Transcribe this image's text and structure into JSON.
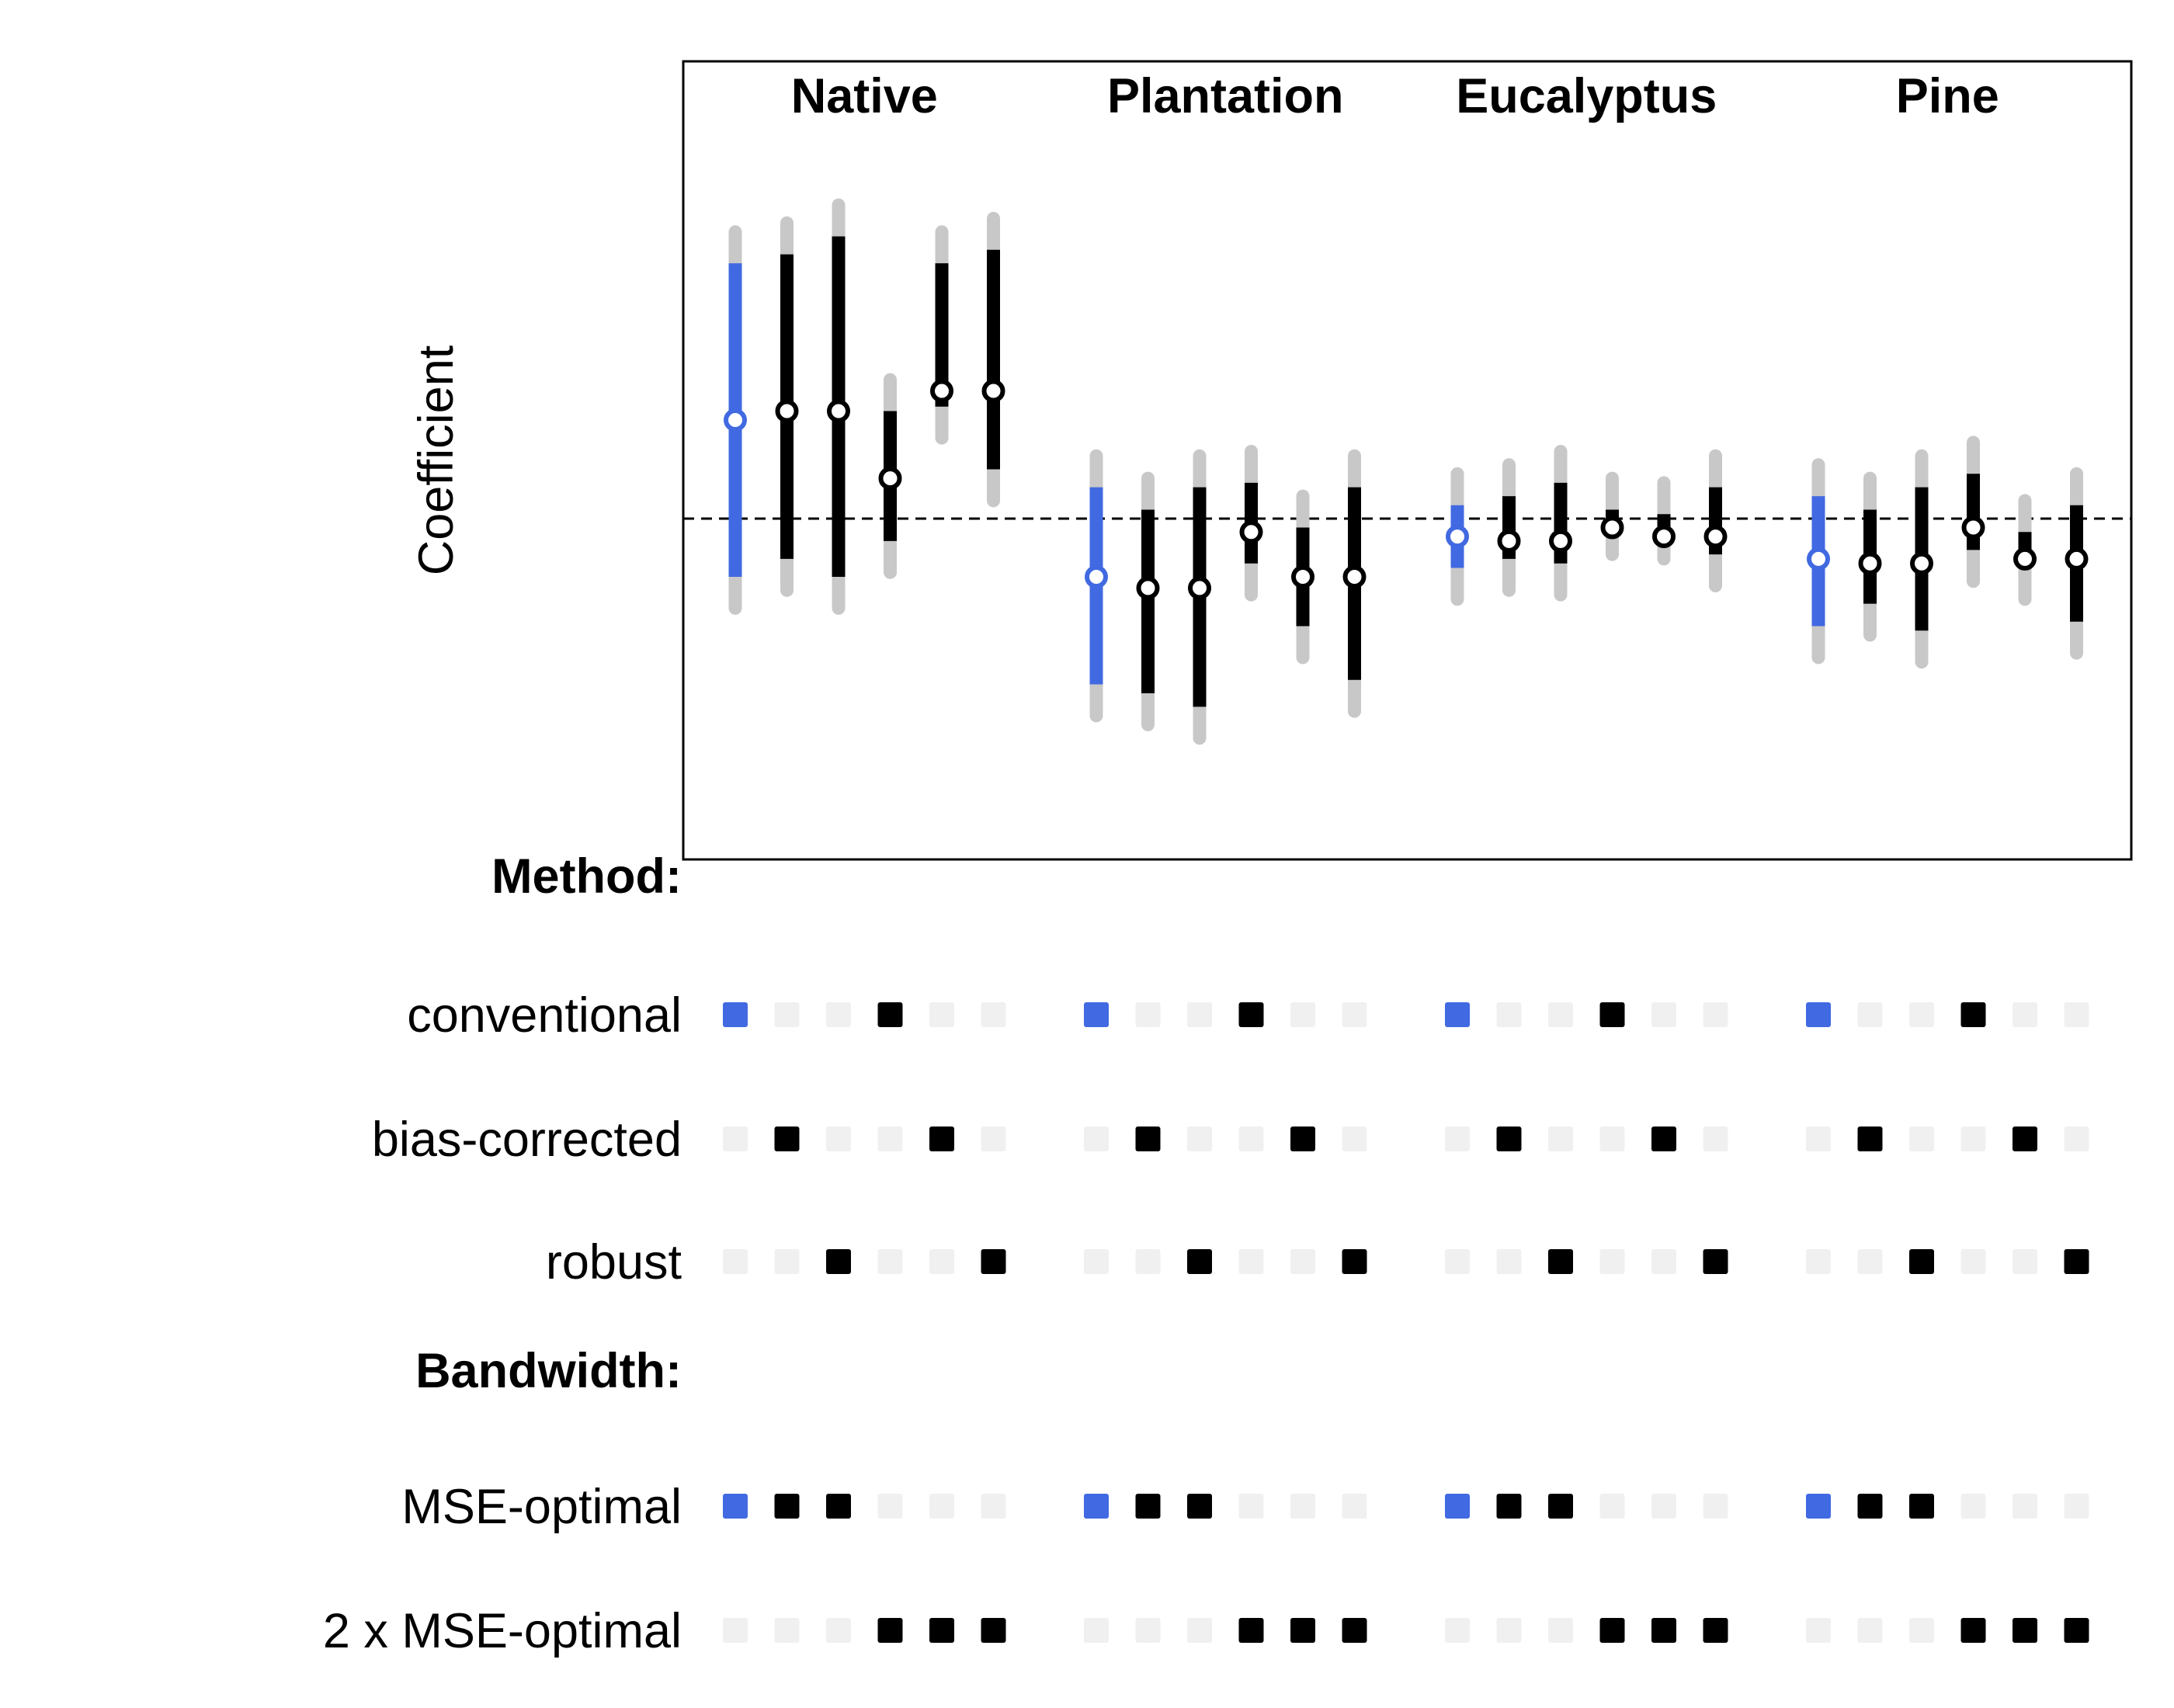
{
  "chart_data": {
    "type": "specification-curve",
    "ylabel": "Coefficient",
    "reference_line": 0,
    "colors": {
      "baseline": "#4169E1",
      "estimate": "#000000",
      "ci_outer": "#C8C8C8",
      "marker_inactive": "#F0F0F0",
      "marker_active": "#000000"
    },
    "panels": [
      {
        "name": "Native",
        "estimates": [
          {
            "est": 0.22,
            "lo": -0.13,
            "hi": 0.57,
            "lo_outer": -0.2,
            "hi_outer": 0.64
          },
          {
            "est": 0.24,
            "lo": -0.09,
            "hi": 0.59,
            "lo_outer": -0.16,
            "hi_outer": 0.66
          },
          {
            "est": 0.24,
            "lo": -0.13,
            "hi": 0.63,
            "lo_outer": -0.2,
            "hi_outer": 0.7
          },
          {
            "est": 0.09,
            "lo": -0.05,
            "hi": 0.24,
            "lo_outer": -0.12,
            "hi_outer": 0.31
          },
          {
            "est": 0.285,
            "lo": 0.25,
            "hi": 0.57,
            "lo_outer": 0.18,
            "hi_outer": 0.64
          },
          {
            "est": 0.285,
            "lo": 0.11,
            "hi": 0.6,
            "lo_outer": 0.04,
            "hi_outer": 0.67
          }
        ]
      },
      {
        "name": "Plantation",
        "estimates": [
          {
            "est": -0.13,
            "lo": -0.37,
            "hi": 0.07,
            "lo_outer": -0.44,
            "hi_outer": 0.14
          },
          {
            "est": -0.155,
            "lo": -0.39,
            "hi": 0.02,
            "lo_outer": -0.46,
            "hi_outer": 0.09
          },
          {
            "est": -0.155,
            "lo": -0.42,
            "hi": 0.07,
            "lo_outer": -0.49,
            "hi_outer": 0.14
          },
          {
            "est": -0.03,
            "lo": -0.1,
            "hi": 0.08,
            "lo_outer": -0.17,
            "hi_outer": 0.15
          },
          {
            "est": -0.13,
            "lo": -0.24,
            "hi": -0.02,
            "lo_outer": -0.31,
            "hi_outer": 0.05
          },
          {
            "est": -0.13,
            "lo": -0.36,
            "hi": 0.07,
            "lo_outer": -0.43,
            "hi_outer": 0.14
          }
        ]
      },
      {
        "name": "Eucalyptus",
        "estimates": [
          {
            "est": -0.04,
            "lo": -0.11,
            "hi": 0.03,
            "lo_outer": -0.18,
            "hi_outer": 0.1
          },
          {
            "est": -0.05,
            "lo": -0.09,
            "hi": 0.05,
            "lo_outer": -0.16,
            "hi_outer": 0.12
          },
          {
            "est": -0.05,
            "lo": -0.1,
            "hi": 0.08,
            "lo_outer": -0.17,
            "hi_outer": 0.15
          },
          {
            "est": -0.02,
            "lo": -0.01,
            "hi": 0.02,
            "lo_outer": -0.08,
            "hi_outer": 0.09
          },
          {
            "est": -0.04,
            "lo": -0.02,
            "hi": 0.01,
            "lo_outer": -0.09,
            "hi_outer": 0.08
          },
          {
            "est": -0.04,
            "lo": -0.08,
            "hi": 0.07,
            "lo_outer": -0.15,
            "hi_outer": 0.14
          }
        ]
      },
      {
        "name": "Pine",
        "estimates": [
          {
            "est": -0.09,
            "lo": -0.24,
            "hi": 0.05,
            "lo_outer": -0.31,
            "hi_outer": 0.12
          },
          {
            "est": -0.1,
            "lo": -0.19,
            "hi": 0.02,
            "lo_outer": -0.26,
            "hi_outer": 0.09
          },
          {
            "est": -0.1,
            "lo": -0.25,
            "hi": 0.07,
            "lo_outer": -0.32,
            "hi_outer": 0.14
          },
          {
            "est": -0.02,
            "lo": -0.07,
            "hi": 0.1,
            "lo_outer": -0.14,
            "hi_outer": 0.17
          },
          {
            "est": -0.09,
            "lo": -0.11,
            "hi": -0.03,
            "lo_outer": -0.18,
            "hi_outer": 0.04
          },
          {
            "est": -0.09,
            "lo": -0.23,
            "hi": 0.03,
            "lo_outer": -0.3,
            "hi_outer": 0.1
          }
        ]
      }
    ],
    "specification_sections": [
      {
        "label": "Method:",
        "rows": [
          {
            "label": "conventional",
            "active": [
              1,
              0,
              0,
              1,
              0,
              0
            ]
          },
          {
            "label": "bias-corrected",
            "active": [
              0,
              1,
              0,
              0,
              1,
              0
            ]
          },
          {
            "label": "robust",
            "active": [
              0,
              0,
              1,
              0,
              0,
              1
            ]
          }
        ]
      },
      {
        "label": "Bandwidth:",
        "rows": [
          {
            "label": "MSE-optimal",
            "active": [
              1,
              1,
              1,
              0,
              0,
              0
            ]
          },
          {
            "label": "2 x MSE-optimal",
            "active": [
              0,
              0,
              0,
              1,
              1,
              1
            ]
          }
        ]
      }
    ]
  }
}
